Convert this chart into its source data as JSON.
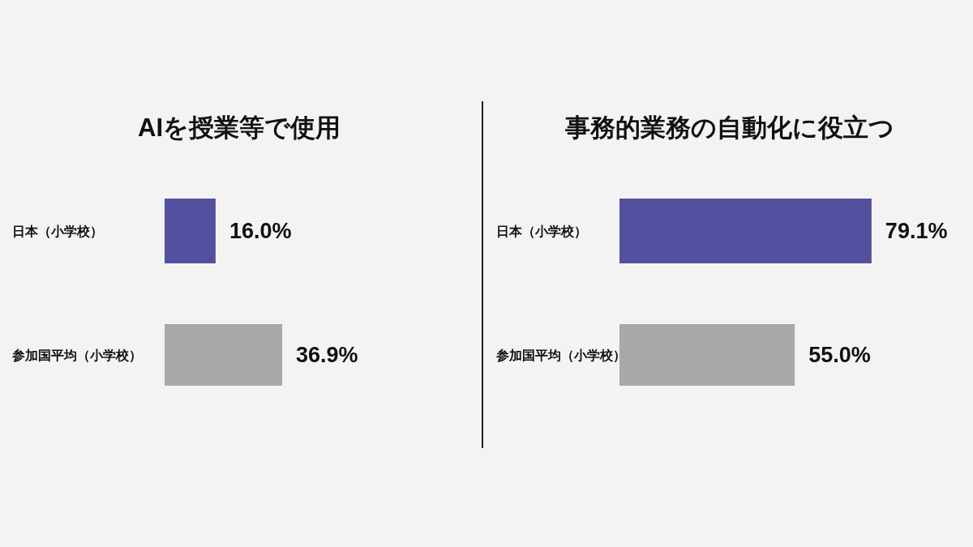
{
  "chart_data": [
    {
      "type": "bar",
      "orientation": "horizontal",
      "title": "AIを授業等で使用",
      "categories": [
        "日本（小学校）",
        "参加国平均（小学校）"
      ],
      "values": [
        16.0,
        36.9
      ],
      "value_labels": [
        "16.0%",
        "36.9%"
      ],
      "colors": [
        "#5450a0",
        "#a8a8a8"
      ]
    },
    {
      "type": "bar",
      "orientation": "horizontal",
      "title": "事務的業務の自動化に役立つ",
      "categories": [
        "日本（小学校）",
        "参加国平均（小学校）"
      ],
      "values": [
        79.1,
        55.0
      ],
      "value_labels": [
        "79.1%",
        "55.0%"
      ],
      "colors": [
        "#5450a0",
        "#a8a8a8"
      ]
    }
  ]
}
